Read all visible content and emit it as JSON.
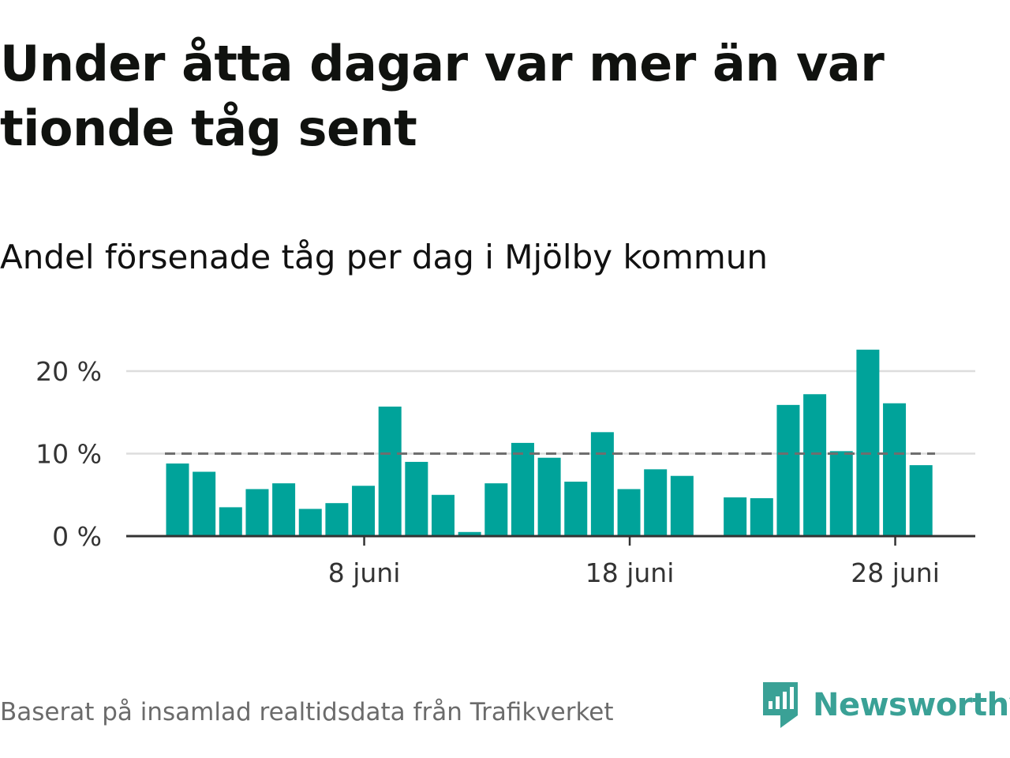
{
  "header": {
    "title": "Under åtta dagar var mer än var tionde tåg sent",
    "subtitle": "Andel försenade tåg per dag i Mjölby kommun"
  },
  "footer": {
    "source": "Baserat på insamlad realtidsdata från Trafikverket",
    "brand": "Newsworthy"
  },
  "colors": {
    "bar": "#00a39a",
    "reference_line": "#6e6e6e",
    "grid": "#dddddd",
    "axis": "#333333",
    "brand": "#3aa196"
  },
  "icons": {
    "logo": "newsworthy-bar-chart-icon"
  },
  "chart_data": {
    "type": "bar",
    "x": [
      "1 juni",
      "2 juni",
      "3 juni",
      "4 juni",
      "5 juni",
      "6 juni",
      "7 juni",
      "8 juni",
      "9 juni",
      "10 juni",
      "11 juni",
      "12 juni",
      "13 juni",
      "14 juni",
      "15 juni",
      "16 juni",
      "17 juni",
      "18 juni",
      "19 juni",
      "20 juni",
      "21 juni",
      "22 juni",
      "23 juni",
      "24 juni",
      "25 juni",
      "26 juni",
      "27 juni",
      "28 juni",
      "29 juni",
      "30 juni"
    ],
    "values": [
      8.8,
      7.8,
      3.5,
      5.7,
      6.4,
      3.3,
      4.0,
      6.1,
      15.7,
      9.0,
      5.0,
      0.5,
      6.4,
      11.3,
      9.5,
      6.6,
      12.6,
      5.7,
      8.1,
      7.3,
      null,
      4.7,
      4.6,
      15.9,
      17.2,
      10.3,
      22.6,
      16.1,
      8.6,
      null
    ],
    "reference_value": 10,
    "xtick_labels": [
      "8 juni",
      "18 juni",
      "28 juni"
    ],
    "xtick_positions": [
      "8 juni",
      "18 juni",
      "28 juni"
    ],
    "ytick_labels": [
      "0 %",
      "10 %",
      "20 %"
    ],
    "ytick_values": [
      0,
      10,
      20
    ],
    "ylim": [
      0,
      22.6
    ],
    "grid": true,
    "legend": "none"
  }
}
